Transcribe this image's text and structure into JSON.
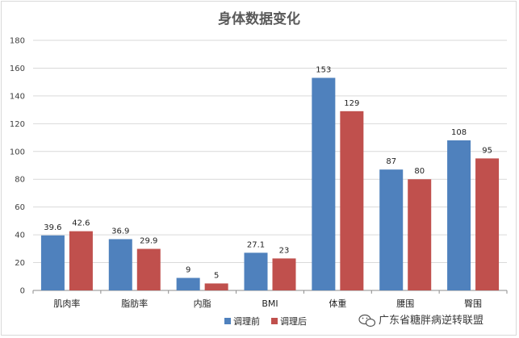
{
  "chart_data": {
    "type": "bar",
    "title": "身体数据变化",
    "categories": [
      "肌肉率",
      "脂肪率",
      "内脂",
      "BMI",
      "体重",
      "腰围",
      "臀围"
    ],
    "series": [
      {
        "name": "调理前",
        "color": "#4f81bd",
        "values": [
          39.6,
          36.9,
          9,
          27.1,
          153,
          87,
          108
        ]
      },
      {
        "name": "调理后",
        "color": "#c0504d",
        "values": [
          42.6,
          29.9,
          5,
          23,
          129,
          80,
          95
        ]
      }
    ],
    "ylim": [
      0,
      180
    ],
    "yticks": [
      0,
      20,
      40,
      60,
      80,
      100,
      120,
      140,
      160,
      180
    ],
    "grid": true,
    "legend_position": "bottom"
  },
  "watermark": {
    "text": "广东省糖胖病逆转联盟",
    "icon": "wechat-icon"
  }
}
